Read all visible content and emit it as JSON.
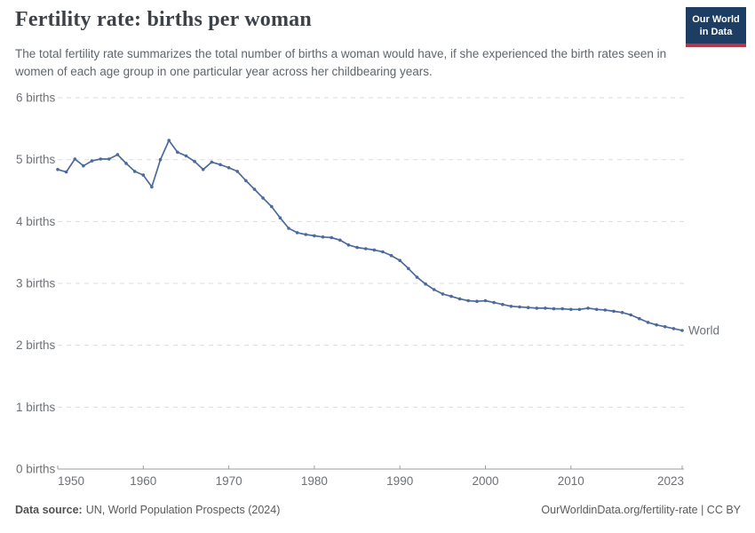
{
  "header": {
    "title": "Fertility rate: births per woman",
    "subtitle": "The total fertility rate summarizes the total number of births a woman would have, if she experienced the birth rates seen in women of each age group in one particular year across her childbearing years.",
    "logo": {
      "line1": "Our World",
      "line2": "in Data"
    }
  },
  "chart_data": {
    "type": "line",
    "title": "Fertility rate: births per woman",
    "xlabel": "",
    "ylabel": "births",
    "xlim": [
      1950,
      2023
    ],
    "ylim": [
      0,
      6
    ],
    "grid": "horizontal dashed",
    "legend": "end-of-line label",
    "x": [
      1950,
      1951,
      1952,
      1953,
      1954,
      1955,
      1956,
      1957,
      1958,
      1959,
      1960,
      1961,
      1962,
      1963,
      1964,
      1965,
      1966,
      1967,
      1968,
      1969,
      1970,
      1971,
      1972,
      1973,
      1974,
      1975,
      1976,
      1977,
      1978,
      1979,
      1980,
      1981,
      1982,
      1983,
      1984,
      1985,
      1986,
      1987,
      1988,
      1989,
      1990,
      1991,
      1992,
      1993,
      1994,
      1995,
      1996,
      1997,
      1998,
      1999,
      2000,
      2001,
      2002,
      2003,
      2004,
      2005,
      2006,
      2007,
      2008,
      2009,
      2010,
      2011,
      2012,
      2013,
      2014,
      2015,
      2016,
      2017,
      2018,
      2019,
      2020,
      2021,
      2022,
      2023
    ],
    "series": [
      {
        "name": "World",
        "color": "#4C6A9C",
        "values": [
          4.84,
          4.8,
          5.01,
          4.9,
          4.98,
          5.01,
          5.01,
          5.08,
          4.94,
          4.81,
          4.75,
          4.56,
          5.0,
          5.31,
          5.12,
          5.06,
          4.97,
          4.84,
          4.96,
          4.92,
          4.87,
          4.81,
          4.66,
          4.52,
          4.38,
          4.24,
          4.06,
          3.89,
          3.82,
          3.79,
          3.77,
          3.75,
          3.74,
          3.7,
          3.62,
          3.58,
          3.56,
          3.54,
          3.51,
          3.45,
          3.37,
          3.24,
          3.1,
          2.99,
          2.9,
          2.83,
          2.79,
          2.75,
          2.72,
          2.71,
          2.72,
          2.69,
          2.66,
          2.63,
          2.62,
          2.61,
          2.6,
          2.6,
          2.59,
          2.59,
          2.58,
          2.58,
          2.6,
          2.58,
          2.57,
          2.55,
          2.53,
          2.49,
          2.43,
          2.37,
          2.33,
          2.3,
          2.27,
          2.24
        ]
      }
    ],
    "ytick_values": [
      0,
      1,
      2,
      3,
      4,
      5,
      6
    ],
    "ytick_labels": [
      "0 births",
      "1 births",
      "2 births",
      "3 births",
      "4 births",
      "5 births",
      "6 births"
    ],
    "xtick_values": [
      1950,
      1960,
      1970,
      1980,
      1990,
      2000,
      2010,
      2023
    ],
    "xtick_labels": [
      "1950",
      "1960",
      "1970",
      "1980",
      "1990",
      "2000",
      "2010",
      "2023"
    ]
  },
  "footer": {
    "data_source_label": "Data source:",
    "data_source_value": "UN, World Population Prospects (2024)",
    "attribution": "OurWorldinData.org/fertility-rate | CC BY"
  },
  "colors": {
    "line": "#4C6A9C",
    "logo_bg": "#1d3d63",
    "logo_accent": "#b5354a",
    "grid": "#dbdbdb",
    "axis": "#9c9c9c",
    "tick_label": "#6d7177"
  }
}
